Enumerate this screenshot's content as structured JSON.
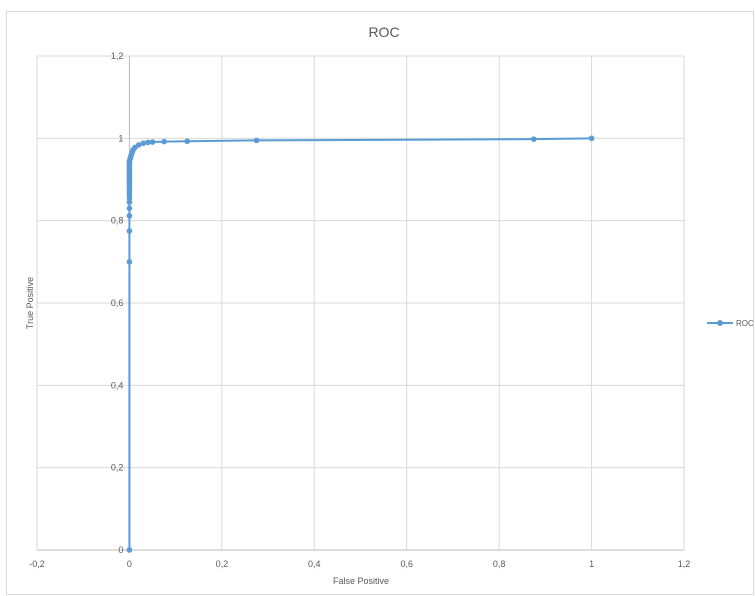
{
  "chart_data": {
    "type": "scatter",
    "title": "ROC",
    "xlabel": "False Positive",
    "ylabel": "True Positive",
    "xlim": [
      -0.2,
      1.2
    ],
    "ylim": [
      0,
      1.2
    ],
    "x_ticks": [
      "-0,2",
      "0",
      "0,2",
      "0,4",
      "0,6",
      "0,8",
      "1",
      "1,2"
    ],
    "y_ticks": [
      "0",
      "0,2",
      "0,4",
      "0,6",
      "0,8",
      "1",
      "1,2"
    ],
    "grid": true,
    "legend_position": "right",
    "series": [
      {
        "name": "ROC",
        "color": "#5b9bd5",
        "x": [
          0,
          0,
          0,
          0,
          0,
          0,
          0,
          0,
          0,
          0,
          0,
          0,
          0,
          0,
          0,
          0,
          0,
          0,
          0,
          0,
          0,
          0,
          0,
          0,
          0.001,
          0.002,
          0.003,
          0.004,
          0.006,
          0.008,
          0.012,
          0.02,
          0.03,
          0.04,
          0.05,
          0.075,
          0.125,
          0.275,
          0.875,
          1
        ],
        "y": [
          0,
          0.7,
          0.775,
          0.812,
          0.83,
          0.845,
          0.855,
          0.863,
          0.87,
          0.877,
          0.883,
          0.888,
          0.893,
          0.898,
          0.903,
          0.908,
          0.913,
          0.918,
          0.923,
          0.928,
          0.932,
          0.936,
          0.94,
          0.944,
          0.948,
          0.952,
          0.956,
          0.96,
          0.966,
          0.972,
          0.978,
          0.984,
          0.988,
          0.99,
          0.991,
          0.992,
          0.993,
          0.995,
          0.998,
          1
        ]
      }
    ]
  }
}
